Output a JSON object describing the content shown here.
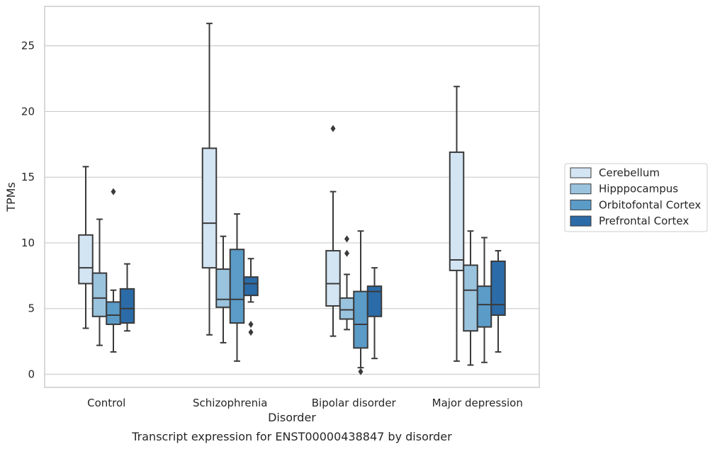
{
  "caption": "Transcript expression for ENST00000438847 by disorder",
  "chart_data": {
    "type": "box",
    "xlabel": "Disorder",
    "ylabel": "TPMs",
    "ylim": [
      -1,
      28
    ],
    "yticks": [
      0,
      5,
      10,
      15,
      20,
      25
    ],
    "grid": "horizontal",
    "legend_position": "right",
    "categories": [
      "Control",
      "Schizophrenia",
      "Bipolar disorder",
      "Major depression"
    ],
    "series": [
      {
        "name": "Cerebellum",
        "color": "#d3e4f3",
        "boxes": [
          {
            "whislo": 3.5,
            "q1": 6.9,
            "med": 8.1,
            "q3": 10.6,
            "whishi": 15.8,
            "fliers": []
          },
          {
            "whislo": 3.0,
            "q1": 8.1,
            "med": 11.5,
            "q3": 17.2,
            "whishi": 26.7,
            "fliers": []
          },
          {
            "whislo": 2.9,
            "q1": 5.2,
            "med": 6.9,
            "q3": 9.4,
            "whishi": 13.9,
            "fliers": [
              18.7
            ]
          },
          {
            "whislo": 1.0,
            "q1": 7.9,
            "med": 8.7,
            "q3": 16.9,
            "whishi": 21.9,
            "fliers": []
          }
        ]
      },
      {
        "name": "Hipppocampus",
        "color": "#9ac3de",
        "boxes": [
          {
            "whislo": 2.2,
            "q1": 4.4,
            "med": 5.8,
            "q3": 7.7,
            "whishi": 11.8,
            "fliers": []
          },
          {
            "whislo": 2.4,
            "q1": 5.1,
            "med": 5.7,
            "q3": 8.0,
            "whishi": 10.5,
            "fliers": []
          },
          {
            "whislo": 3.4,
            "q1": 4.2,
            "med": 4.9,
            "q3": 5.8,
            "whishi": 7.6,
            "fliers": [
              9.2,
              10.3
            ]
          },
          {
            "whislo": 0.7,
            "q1": 3.3,
            "med": 6.4,
            "q3": 8.3,
            "whishi": 10.9,
            "fliers": []
          }
        ]
      },
      {
        "name": "Orbitofontal Cortex",
        "color": "#5b9bc8",
        "boxes": [
          {
            "whislo": 1.7,
            "q1": 3.8,
            "med": 4.5,
            "q3": 5.5,
            "whishi": 6.4,
            "fliers": [
              13.9
            ]
          },
          {
            "whislo": 1.0,
            "q1": 3.9,
            "med": 5.7,
            "q3": 9.5,
            "whishi": 12.2,
            "fliers": []
          },
          {
            "whislo": 0.5,
            "q1": 2.0,
            "med": 3.8,
            "q3": 6.3,
            "whishi": 10.9,
            "fliers": [
              0.2
            ]
          },
          {
            "whislo": 0.9,
            "q1": 3.6,
            "med": 5.3,
            "q3": 6.7,
            "whishi": 10.4,
            "fliers": []
          }
        ]
      },
      {
        "name": "Prefrontal Cortex",
        "color": "#2b6ba8",
        "boxes": [
          {
            "whislo": 3.3,
            "q1": 3.9,
            "med": 5.0,
            "q3": 6.5,
            "whishi": 8.4,
            "fliers": []
          },
          {
            "whislo": 5.5,
            "q1": 6.0,
            "med": 6.9,
            "q3": 7.4,
            "whishi": 8.8,
            "fliers": [
              3.2,
              3.8
            ]
          },
          {
            "whislo": 1.2,
            "q1": 4.4,
            "med": 6.3,
            "q3": 6.7,
            "whishi": 8.1,
            "fliers": []
          },
          {
            "whislo": 1.7,
            "q1": 4.5,
            "med": 5.3,
            "q3": 8.6,
            "whishi": 9.4,
            "fliers": []
          }
        ]
      }
    ]
  }
}
